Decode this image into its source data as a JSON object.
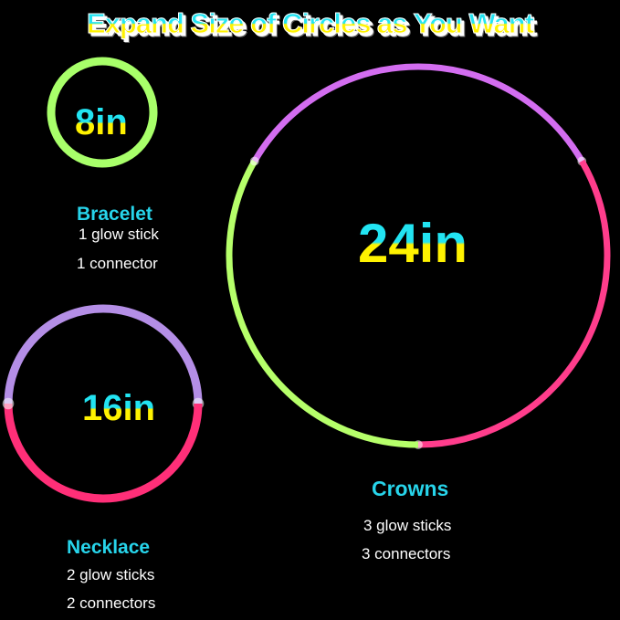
{
  "title": "Expand Size of Circles as You Want",
  "bracelet": {
    "size": "8in",
    "name": "Bracelet",
    "line1": "1 glow stick",
    "line2": "1 connector",
    "colors": [
      "#a8ff6a"
    ]
  },
  "necklace": {
    "size": "16in",
    "name": "Necklace",
    "line1": "2 glow sticks",
    "line2": "2 connectors",
    "colors": [
      "#b48ee6",
      "#ff2f78"
    ]
  },
  "crowns": {
    "size": "24in",
    "name": "Crowns",
    "line1": "3 glow sticks",
    "line2": "3 connectors",
    "colors": [
      "#d36df0",
      "#ff3d8c",
      "#b6ff6a"
    ]
  }
}
